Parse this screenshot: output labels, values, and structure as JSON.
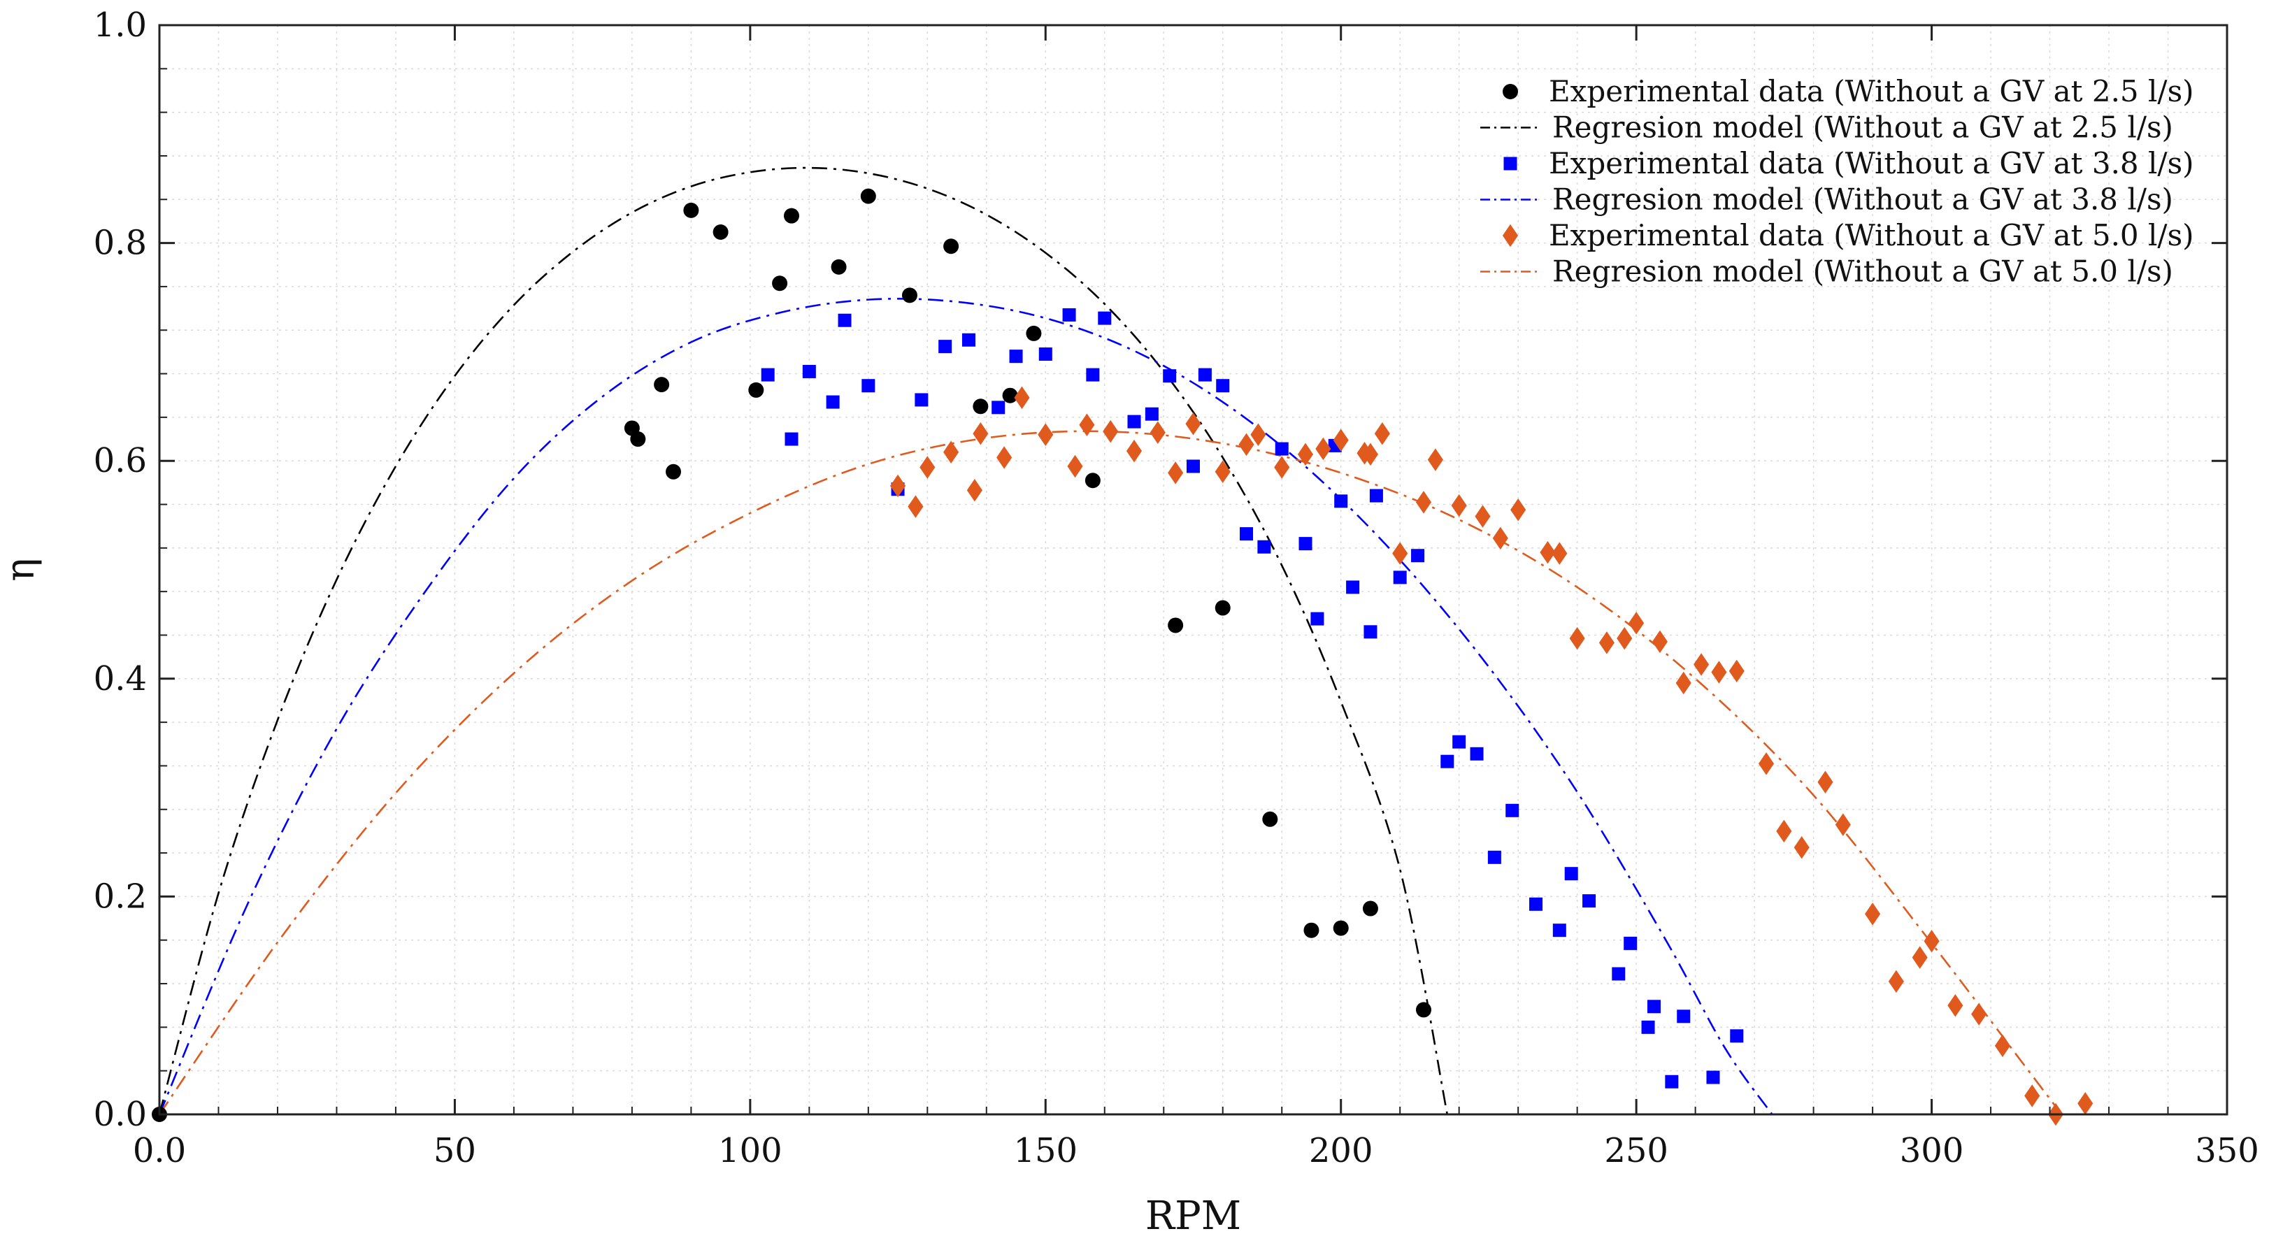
{
  "chart_data": {
    "type": "scatter",
    "title": "",
    "xlabel": "RPM",
    "ylabel": "η",
    "xlim": [
      0,
      350
    ],
    "ylim": [
      0,
      1.0
    ],
    "xticks": [
      0,
      50,
      100,
      150,
      200,
      250,
      300,
      350
    ],
    "xtick_labels": [
      "0.0",
      "50",
      "100",
      "150",
      "200",
      "250",
      "300",
      "350"
    ],
    "yticks": [
      0,
      0.2,
      0.4,
      0.6,
      0.8,
      1.0
    ],
    "ytick_labels": [
      "0.0",
      "0.2",
      "0.4",
      "0.6",
      "0.8",
      "1.0"
    ],
    "grid": true,
    "legend_position": "top-right",
    "series": [
      {
        "name": "Experimental data (Without a GV at 2.5 l/s)",
        "kind": "scatter",
        "marker": "circle",
        "color": "#000000",
        "points": [
          [
            0,
            0
          ],
          [
            80,
            0.63
          ],
          [
            81,
            0.62
          ],
          [
            85,
            0.67
          ],
          [
            87,
            0.59
          ],
          [
            90,
            0.83
          ],
          [
            95,
            0.81
          ],
          [
            101,
            0.665
          ],
          [
            105,
            0.763
          ],
          [
            107,
            0.825
          ],
          [
            115,
            0.778
          ],
          [
            120,
            0.843
          ],
          [
            127,
            0.752
          ],
          [
            134,
            0.797
          ],
          [
            139,
            0.65
          ],
          [
            144,
            0.66
          ],
          [
            148,
            0.717
          ],
          [
            158,
            0.582
          ],
          [
            172,
            0.449
          ],
          [
            180,
            0.465
          ],
          [
            188,
            0.271
          ],
          [
            195,
            0.169
          ],
          [
            200,
            0.171
          ],
          [
            205,
            0.189
          ],
          [
            214,
            0.096
          ]
        ]
      },
      {
        "name": "Regresion model (Without a GV  at 2.5 l/s)",
        "kind": "curve",
        "dash": "dashdot",
        "color": "#000000",
        "x": [
          0,
          10,
          20,
          30,
          40,
          50,
          60,
          70,
          80,
          90,
          100,
          110,
          120,
          130,
          140,
          150,
          160,
          170,
          180,
          190,
          200,
          210,
          218
        ],
        "y": [
          0,
          0.203,
          0.362,
          0.491,
          0.595,
          0.678,
          0.743,
          0.792,
          0.828,
          0.852,
          0.865,
          0.869,
          0.864,
          0.85,
          0.826,
          0.791,
          0.744,
          0.682,
          0.603,
          0.504,
          0.379,
          0.225,
          0.0
        ]
      },
      {
        "name": "Experimental data (Without a GV at 3.8 l/s)",
        "kind": "scatter",
        "marker": "square",
        "color": "#0000ff",
        "points": [
          [
            103,
            0.679
          ],
          [
            107,
            0.62
          ],
          [
            110,
            0.682
          ],
          [
            114,
            0.654
          ],
          [
            116,
            0.729
          ],
          [
            120,
            0.669
          ],
          [
            125,
            0.574
          ],
          [
            129,
            0.656
          ],
          [
            133,
            0.705
          ],
          [
            137,
            0.711
          ],
          [
            142,
            0.649
          ],
          [
            145,
            0.696
          ],
          [
            150,
            0.698
          ],
          [
            154,
            0.734
          ],
          [
            158,
            0.679
          ],
          [
            160,
            0.731
          ],
          [
            165,
            0.636
          ],
          [
            168,
            0.643
          ],
          [
            171,
            0.678
          ],
          [
            175,
            0.595
          ],
          [
            177,
            0.679
          ],
          [
            180,
            0.669
          ],
          [
            184,
            0.533
          ],
          [
            187,
            0.521
          ],
          [
            190,
            0.611
          ],
          [
            194,
            0.524
          ],
          [
            196,
            0.455
          ],
          [
            199,
            0.614
          ],
          [
            200,
            0.563
          ],
          [
            202,
            0.484
          ],
          [
            205,
            0.443
          ],
          [
            206,
            0.568
          ],
          [
            210,
            0.493
          ],
          [
            213,
            0.513
          ],
          [
            218,
            0.324
          ],
          [
            220,
            0.342
          ],
          [
            223,
            0.331
          ],
          [
            226,
            0.236
          ],
          [
            229,
            0.279
          ],
          [
            233,
            0.193
          ],
          [
            237,
            0.169
          ],
          [
            239,
            0.221
          ],
          [
            242,
            0.196
          ],
          [
            247,
            0.129
          ],
          [
            249,
            0.157
          ],
          [
            252,
            0.08
          ],
          [
            253,
            0.099
          ],
          [
            256,
            0.03
          ],
          [
            258,
            0.09
          ],
          [
            263,
            0.034
          ],
          [
            267,
            0.072
          ]
        ]
      },
      {
        "name": "Regresion model (Without a GV at 3.8 l/s)",
        "kind": "curve",
        "dash": "dashdot",
        "color": "#0000ff",
        "x": [
          0,
          15,
          30,
          45,
          60,
          75,
          90,
          105,
          120,
          135,
          150,
          165,
          180,
          195,
          210,
          225,
          240,
          255,
          265,
          273
        ],
        "y": [
          0,
          0.194,
          0.354,
          0.48,
          0.584,
          0.659,
          0.709,
          0.736,
          0.748,
          0.746,
          0.731,
          0.701,
          0.654,
          0.59,
          0.509,
          0.411,
          0.296,
          0.16,
          0.061,
          0.0
        ]
      },
      {
        "name": "Experimental data (Without a GV at 5.0 l/s)",
        "kind": "scatter",
        "marker": "diamond",
        "color": "#e05a1e",
        "points": [
          [
            125,
            0.577
          ],
          [
            128,
            0.558
          ],
          [
            130,
            0.594
          ],
          [
            134,
            0.608
          ],
          [
            138,
            0.573
          ],
          [
            139,
            0.625
          ],
          [
            143,
            0.603
          ],
          [
            146,
            0.658
          ],
          [
            150,
            0.624
          ],
          [
            155,
            0.595
          ],
          [
            157,
            0.633
          ],
          [
            161,
            0.627
          ],
          [
            165,
            0.609
          ],
          [
            169,
            0.626
          ],
          [
            172,
            0.589
          ],
          [
            175,
            0.634
          ],
          [
            180,
            0.59
          ],
          [
            184,
            0.615
          ],
          [
            186,
            0.624
          ],
          [
            190,
            0.594
          ],
          [
            194,
            0.606
          ],
          [
            197,
            0.611
          ],
          [
            200,
            0.619
          ],
          [
            204,
            0.607
          ],
          [
            205,
            0.606
          ],
          [
            207,
            0.625
          ],
          [
            210,
            0.515
          ],
          [
            214,
            0.562
          ],
          [
            216,
            0.601
          ],
          [
            220,
            0.559
          ],
          [
            224,
            0.549
          ],
          [
            227,
            0.529
          ],
          [
            230,
            0.555
          ],
          [
            235,
            0.516
          ],
          [
            237,
            0.515
          ],
          [
            240,
            0.437
          ],
          [
            245,
            0.433
          ],
          [
            248,
            0.437
          ],
          [
            250,
            0.451
          ],
          [
            254,
            0.434
          ],
          [
            258,
            0.396
          ],
          [
            261,
            0.413
          ],
          [
            264,
            0.406
          ],
          [
            267,
            0.407
          ],
          [
            272,
            0.322
          ],
          [
            275,
            0.26
          ],
          [
            278,
            0.245
          ],
          [
            282,
            0.305
          ],
          [
            285,
            0.266
          ],
          [
            290,
            0.184
          ],
          [
            294,
            0.122
          ],
          [
            298,
            0.144
          ],
          [
            300,
            0.159
          ],
          [
            304,
            0.1
          ],
          [
            308,
            0.092
          ],
          [
            312,
            0.063
          ],
          [
            317,
            0.017
          ],
          [
            321,
            0.0
          ],
          [
            326,
            0.01
          ]
        ]
      },
      {
        "name": "Regresion model (Without a GV at 5.0 l/s)",
        "kind": "curve",
        "dash": "dashdot",
        "color": "#e05a1e",
        "x": [
          0,
          20,
          40,
          60,
          80,
          100,
          120,
          140,
          160,
          180,
          200,
          220,
          240,
          260,
          280,
          300,
          315,
          322
        ],
        "y": [
          0,
          0.158,
          0.295,
          0.405,
          0.49,
          0.552,
          0.597,
          0.621,
          0.627,
          0.616,
          0.589,
          0.546,
          0.484,
          0.4,
          0.293,
          0.157,
          0.05,
          0.0
        ]
      }
    ]
  }
}
